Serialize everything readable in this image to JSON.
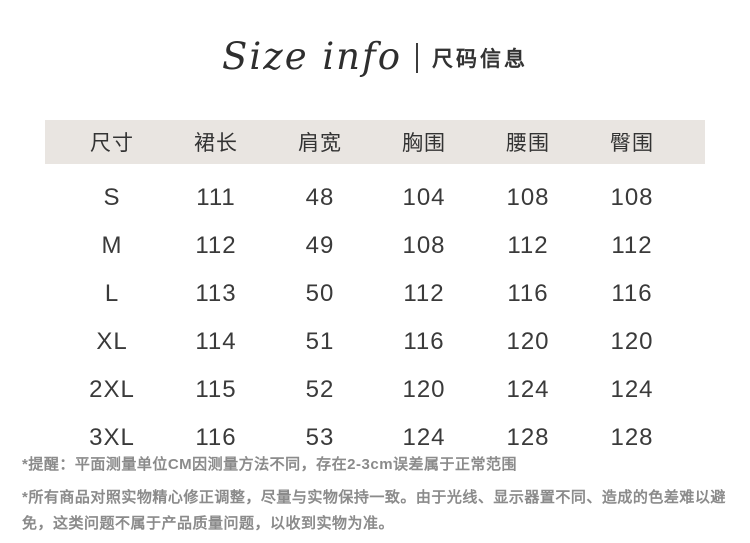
{
  "header": {
    "title_en": "Size info",
    "title_cn": "尺码信息"
  },
  "table": {
    "columns": [
      "尺寸",
      "裙长",
      "肩宽",
      "胸围",
      "腰围",
      "臀围"
    ],
    "rows": [
      [
        "S",
        "111",
        "48",
        "104",
        "108",
        "108"
      ],
      [
        "M",
        "112",
        "49",
        "108",
        "112",
        "112"
      ],
      [
        "L",
        "113",
        "50",
        "112",
        "116",
        "116"
      ],
      [
        "XL",
        "114",
        "51",
        "116",
        "120",
        "120"
      ],
      [
        "2XL",
        "115",
        "52",
        "120",
        "124",
        "124"
      ],
      [
        "3XL",
        "116",
        "53",
        "124",
        "128",
        "128"
      ]
    ]
  },
  "notes": {
    "reminder": "*提醒：平面测量单位CM因测量方法不同，存在2-3cm误差属于正常范围",
    "disclaimer": "*所有商品对照实物精心修正调整，尽量与实物保持一致。由于光线、显示器置不同、造成的色差难以避免，这类问题不属于产品质量问题，以收到实物为准。"
  },
  "colors": {
    "header_band": "#e9e5e1",
    "title_text": "#2e2e2e",
    "table_text": "#3a3a3a",
    "note_text": "#8b8b8b",
    "background": "#ffffff"
  },
  "chart_data": {
    "type": "table",
    "title": "Size info 尺码信息",
    "unit": "CM",
    "columns": [
      "尺寸",
      "裙长",
      "肩宽",
      "胸围",
      "腰围",
      "臀围"
    ],
    "rows": [
      [
        "S",
        111,
        48,
        104,
        108,
        108
      ],
      [
        "M",
        112,
        49,
        108,
        112,
        112
      ],
      [
        "L",
        113,
        50,
        112,
        116,
        116
      ],
      [
        "XL",
        114,
        51,
        116,
        120,
        120
      ],
      [
        "2XL",
        115,
        52,
        120,
        124,
        124
      ],
      [
        "3XL",
        116,
        53,
        124,
        128,
        128
      ]
    ],
    "footnotes": [
      "*提醒：平面测量单位CM因测量方法不同，存在2-3cm误差属于正常范围",
      "*所有商品对照实物精心修正调整，尽量与实物保持一致。由于光线、显示器置不同、造成的色差难以避免，这类问题不属于产品质量问题，以收到实物为准。"
    ]
  }
}
